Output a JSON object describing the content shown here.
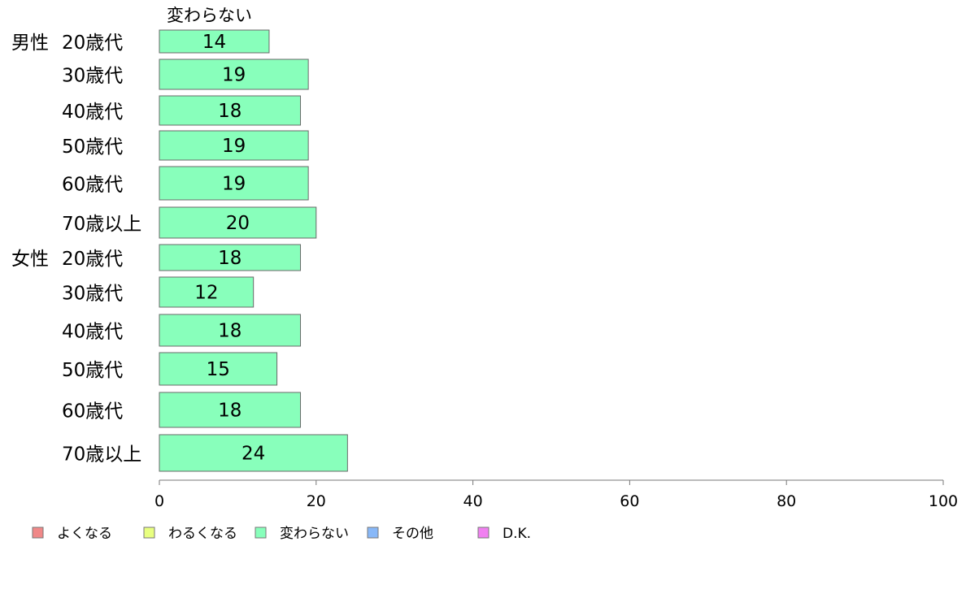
{
  "chart_data": {
    "type": "bar",
    "orientation": "horizontal",
    "stacked": true,
    "series_header": "変わらない",
    "categories": [
      {
        "group": "男性",
        "label": "20歳代"
      },
      {
        "group": "",
        "label": "30歳代"
      },
      {
        "group": "",
        "label": "40歳代"
      },
      {
        "group": "",
        "label": "50歳代"
      },
      {
        "group": "",
        "label": "60歳代"
      },
      {
        "group": "",
        "label": "70歳以上"
      },
      {
        "group": "女性",
        "label": "20歳代"
      },
      {
        "group": "",
        "label": "30歳代"
      },
      {
        "group": "",
        "label": "40歳代"
      },
      {
        "group": "",
        "label": "50歳代"
      },
      {
        "group": "",
        "label": "60歳代"
      },
      {
        "group": "",
        "label": "70歳以上"
      }
    ],
    "series": [
      {
        "name": "変わらない",
        "color": "#88ffbb",
        "values": [
          14,
          19,
          18,
          19,
          19,
          20,
          18,
          12,
          18,
          15,
          18,
          24
        ]
      }
    ],
    "xlim": [
      0,
      100
    ],
    "xticks": [
      0,
      20,
      40,
      60,
      80,
      100
    ],
    "legend": {
      "position": "bottom-left",
      "items": [
        {
          "name": "よくなる",
          "color": "#f08888"
        },
        {
          "name": "わるくなる",
          "color": "#e8ff80"
        },
        {
          "name": "変わらない",
          "color": "#88ffbb"
        },
        {
          "name": "その他",
          "color": "#88b8f8"
        },
        {
          "name": "D.K.",
          "color": "#f080f0"
        }
      ]
    },
    "grid": false
  }
}
